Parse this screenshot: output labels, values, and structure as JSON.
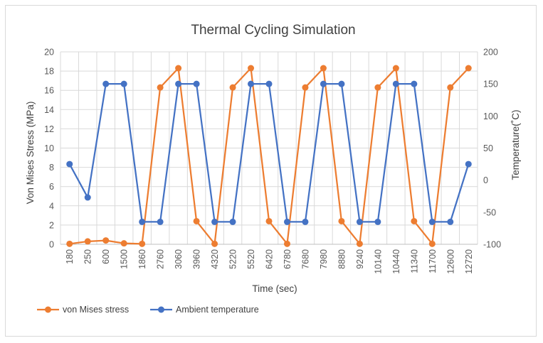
{
  "chart_data": {
    "type": "line",
    "title": "Thermal Cycling Simulation",
    "xlabel": "Time (sec)",
    "ylabel": "Von Mises Stress (MPa)",
    "y2label": "Temperature(˚C)",
    "categories": [
      "180",
      "250",
      "600",
      "1500",
      "1860",
      "2760",
      "3060",
      "3960",
      "4320",
      "5220",
      "5520",
      "6420",
      "6780",
      "7680",
      "7980",
      "8880",
      "9240",
      "10140",
      "10440",
      "11340",
      "11700",
      "12600",
      "12720"
    ],
    "ylim": [
      0,
      20
    ],
    "yticks": [
      0,
      2,
      4,
      6,
      8,
      10,
      12,
      14,
      16,
      18,
      20
    ],
    "y2lim": [
      -100,
      200
    ],
    "y2ticks": [
      -100,
      -50,
      0,
      50,
      100,
      150,
      200
    ],
    "grid": true,
    "legend_position": "bottom-left",
    "series": [
      {
        "name": "von Mises stress",
        "axis": "left",
        "color": "#ED7D31",
        "values": [
          0.05,
          0.3,
          0.4,
          0.1,
          0.05,
          16.3,
          18.3,
          2.4,
          0.05,
          16.3,
          18.3,
          2.4,
          0.05,
          16.3,
          18.3,
          2.4,
          0.05,
          16.3,
          18.3,
          2.4,
          0.05,
          16.3,
          18.3
        ]
      },
      {
        "name": "Ambient temperature",
        "axis": "right",
        "color": "#4472C4",
        "values": [
          25,
          -27,
          150,
          150,
          -65,
          -65,
          150,
          150,
          -65,
          -65,
          150,
          150,
          -65,
          -65,
          150,
          150,
          -65,
          -65,
          150,
          150,
          -65,
          -65,
          25
        ]
      }
    ]
  }
}
